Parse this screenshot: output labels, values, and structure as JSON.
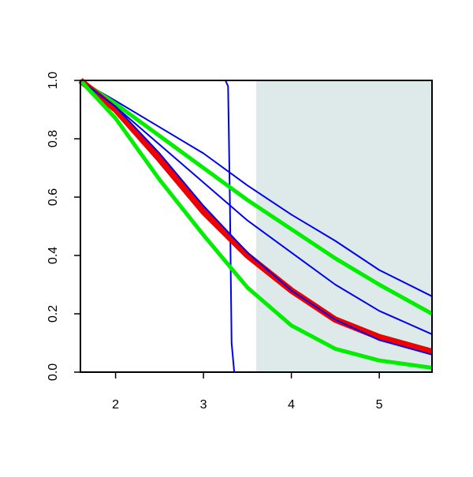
{
  "chart_data": {
    "type": "line",
    "xlim": [
      1.6,
      5.6
    ],
    "ylim": [
      0,
      1
    ],
    "xticks": [
      2,
      3,
      4,
      5
    ],
    "yticks": [
      {
        "value": 0,
        "label": "0.0"
      },
      0.2,
      0.4,
      0.6,
      0.8,
      {
        "value": 1,
        "label": "1.0"
      }
    ],
    "shaded_region": {
      "x": [
        3.6,
        5.6
      ],
      "color": "#deeaea"
    },
    "series": [
      {
        "color": "#0000ee",
        "width": 2,
        "x": [
          1.6,
          3.25,
          3.28,
          3.3,
          3.32,
          3.35,
          5.6
        ],
        "values": [
          1,
          1,
          0.98,
          0.6,
          0.1,
          0,
          0
        ]
      },
      {
        "color": "#0000ee",
        "width": 2,
        "x": [
          1.6,
          2,
          2.5,
          3,
          3.5,
          4,
          4.5,
          5,
          5.6
        ],
        "values": [
          1,
          0.93,
          0.84,
          0.75,
          0.64,
          0.54,
          0.45,
          0.35,
          0.26
        ]
      },
      {
        "color": "#00ee00",
        "width": 5,
        "x": [
          1.6,
          2,
          2.5,
          3,
          3.5,
          4,
          4.5,
          5,
          5.6
        ],
        "values": [
          1,
          0.92,
          0.81,
          0.7,
          0.59,
          0.49,
          0.39,
          0.3,
          0.2
        ]
      },
      {
        "color": "#0000ee",
        "width": 2,
        "x": [
          1.6,
          2,
          2.5,
          3,
          3.5,
          4,
          4.5,
          5,
          5.6
        ],
        "values": [
          1,
          0.91,
          0.78,
          0.65,
          0.52,
          0.41,
          0.3,
          0.21,
          0.13
        ]
      },
      {
        "color": "#ee0000",
        "width": 8,
        "x": [
          1.6,
          2,
          2.5,
          3,
          3.5,
          4,
          4.5,
          5,
          5.6
        ],
        "values": [
          1,
          0.9,
          0.73,
          0.55,
          0.4,
          0.28,
          0.18,
          0.12,
          0.07
        ]
      },
      {
        "color": "#0000ee",
        "width": 2,
        "x": [
          1.6,
          2,
          2.5,
          3,
          3.5,
          4,
          4.5,
          5,
          5.6
        ],
        "values": [
          1,
          0.91,
          0.75,
          0.57,
          0.41,
          0.28,
          0.18,
          0.11,
          0.06
        ]
      },
      {
        "color": "#00ee00",
        "width": 5,
        "x": [
          1.6,
          2,
          2.5,
          3,
          3.5,
          4,
          4.5,
          5,
          5.6
        ],
        "values": [
          1,
          0.87,
          0.66,
          0.47,
          0.29,
          0.16,
          0.08,
          0.04,
          0.015
        ]
      }
    ]
  }
}
